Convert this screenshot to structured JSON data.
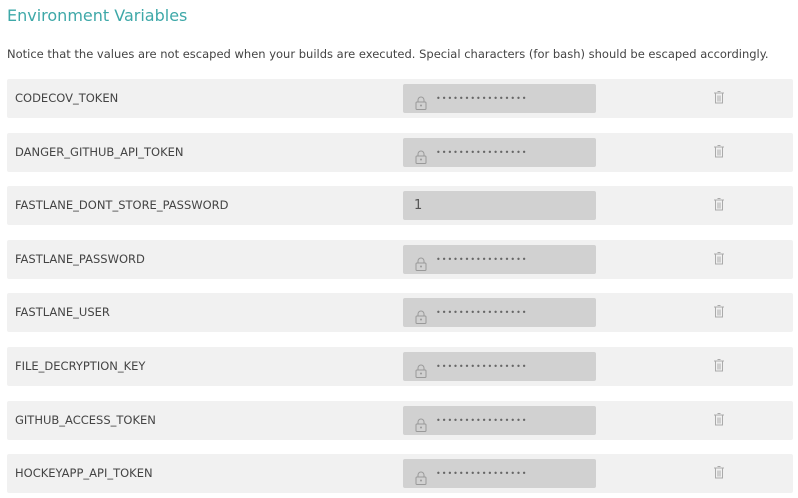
{
  "title": "Environment Variables",
  "notice": "Notice that the values are not escaped when your builds are executed. Special characters (for bash) should be escaped accordingly.",
  "variables": [
    {
      "name": "CODECOV_TOKEN",
      "value": "••••••••••••••••",
      "secret": true
    },
    {
      "name": "DANGER_GITHUB_API_TOKEN",
      "value": "••••••••••••••••",
      "secret": true
    },
    {
      "name": "FASTLANE_DONT_STORE_PASSWORD",
      "value": "1",
      "secret": false
    },
    {
      "name": "FASTLANE_PASSWORD",
      "value": "••••••••••••••••",
      "secret": true
    },
    {
      "name": "FASTLANE_USER",
      "value": "••••••••••••••••",
      "secret": true
    },
    {
      "name": "FILE_DECRYPTION_KEY",
      "value": "••••••••••••••••",
      "secret": true
    },
    {
      "name": "GITHUB_ACCESS_TOKEN",
      "value": "••••••••••••••••",
      "secret": true
    },
    {
      "name": "HOCKEYAPP_API_TOKEN",
      "value": "••••••••••••••••",
      "secret": true
    }
  ],
  "icons": {
    "secret": "lock-icon",
    "delete": "trash-icon"
  },
  "colors": {
    "accent": "#3ea8a8"
  }
}
